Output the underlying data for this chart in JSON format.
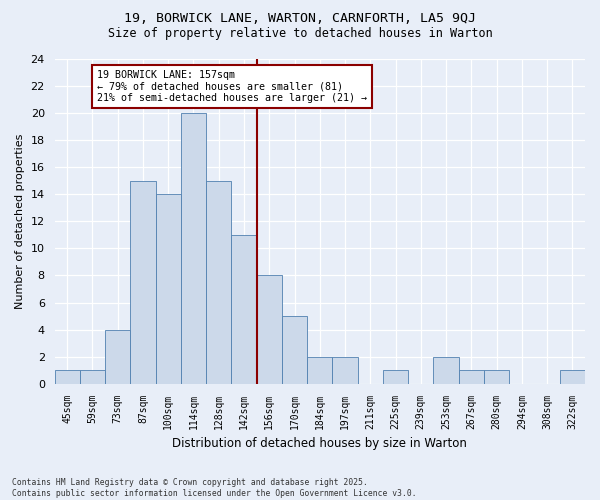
{
  "title1": "19, BORWICK LANE, WARTON, CARNFORTH, LA5 9QJ",
  "title2": "Size of property relative to detached houses in Warton",
  "xlabel": "Distribution of detached houses by size in Warton",
  "ylabel": "Number of detached properties",
  "bar_color": "#ccd9ea",
  "bar_edge_color": "#5080b0",
  "categories": [
    "45sqm",
    "59sqm",
    "73sqm",
    "87sqm",
    "100sqm",
    "114sqm",
    "128sqm",
    "142sqm",
    "156sqm",
    "170sqm",
    "184sqm",
    "197sqm",
    "211sqm",
    "225sqm",
    "239sqm",
    "253sqm",
    "267sqm",
    "280sqm",
    "294sqm",
    "308sqm",
    "322sqm"
  ],
  "values": [
    1,
    1,
    4,
    15,
    14,
    20,
    15,
    11,
    8,
    5,
    2,
    2,
    0,
    1,
    0,
    2,
    1,
    1,
    0,
    0,
    1
  ],
  "vline_x": 7.5,
  "vline_color": "#8b0000",
  "annotation_text": "19 BORWICK LANE: 157sqm\n← 79% of detached houses are smaller (81)\n21% of semi-detached houses are larger (21) →",
  "annotation_box_color": "#8b0000",
  "annotation_fill": "white",
  "ylim": [
    0,
    24
  ],
  "yticks": [
    0,
    2,
    4,
    6,
    8,
    10,
    12,
    14,
    16,
    18,
    20,
    22,
    24
  ],
  "footnote": "Contains HM Land Registry data © Crown copyright and database right 2025.\nContains public sector information licensed under the Open Government Licence v3.0.",
  "bg_color": "#e8eef8"
}
